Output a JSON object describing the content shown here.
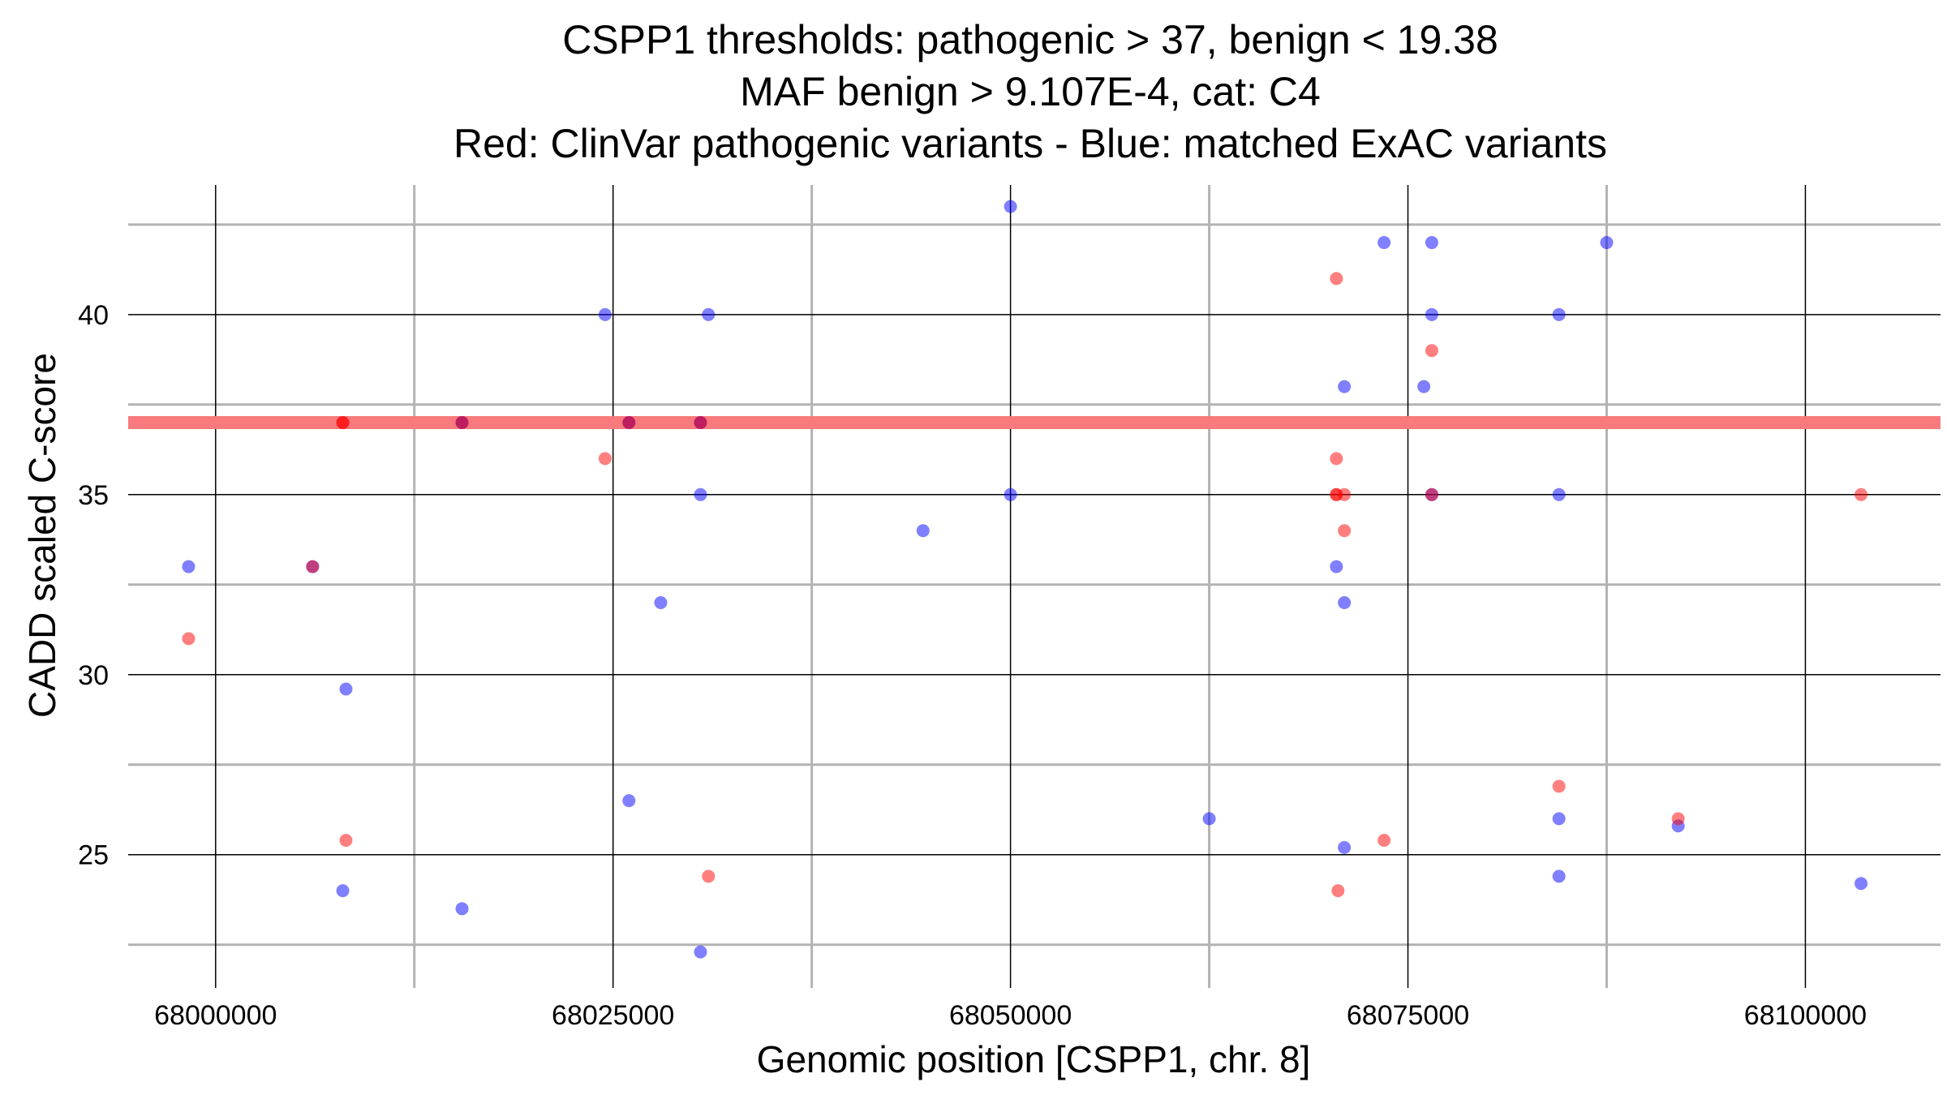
{
  "chart_data": {
    "type": "scatter",
    "title": [
      "CSPP1 thresholds: pathogenic > 37, benign < 19.38",
      "MAF benign > 9.107E-4, cat: C4",
      "Red: ClinVar pathogenic variants - Blue: matched ExAC variants"
    ],
    "xlabel": "Genomic position [CSPP1, chr. 8]",
    "ylabel": "CADD scaled C-score",
    "xlim": [
      67994500,
      68108500
    ],
    "ylim": [
      21.3,
      43.6
    ],
    "x_major_ticks": [
      68000000,
      68025000,
      68050000,
      68075000,
      68100000
    ],
    "x_tick_labels": [
      "68000000",
      "68025000",
      "68050000",
      "68075000",
      "68100000"
    ],
    "x_minor_ticks": [
      68012500,
      68037500,
      68062500,
      68087500
    ],
    "y_major_ticks": [
      25,
      30,
      35,
      40
    ],
    "y_tick_labels": [
      "25",
      "30",
      "35",
      "40"
    ],
    "y_minor_ticks": [
      22.5,
      27.5,
      32.5,
      37.5,
      42.5
    ],
    "threshold_line": {
      "y": 37,
      "color": "#f87a7d",
      "label": "pathogenic threshold"
    },
    "series": [
      {
        "name": "ClinVar pathogenic variants",
        "color": "#ff0000",
        "points": [
          [
            67998300,
            31
          ],
          [
            68006100,
            33
          ],
          [
            68008000,
            37
          ],
          [
            68008000,
            37
          ],
          [
            68008200,
            25.4
          ],
          [
            68015500,
            37
          ],
          [
            68024500,
            36
          ],
          [
            68026000,
            37
          ],
          [
            68030500,
            37
          ],
          [
            68031000,
            24.4
          ],
          [
            68070500,
            41
          ],
          [
            68070500,
            36
          ],
          [
            68070500,
            35
          ],
          [
            68070500,
            35
          ],
          [
            68070600,
            24
          ],
          [
            68071000,
            35
          ],
          [
            68071000,
            34
          ],
          [
            68073500,
            25.4
          ],
          [
            68076500,
            35
          ],
          [
            68076500,
            39
          ],
          [
            68084500,
            26.9
          ],
          [
            68092000,
            26
          ],
          [
            68103500,
            35
          ]
        ]
      },
      {
        "name": "matched ExAC variants",
        "color": "#0000ff",
        "points": [
          [
            67998300,
            33
          ],
          [
            68006100,
            33
          ],
          [
            68008000,
            24
          ],
          [
            68008200,
            29.6
          ],
          [
            68015500,
            37
          ],
          [
            68015500,
            23.5
          ],
          [
            68024500,
            40
          ],
          [
            68026000,
            37
          ],
          [
            68026000,
            26.5
          ],
          [
            68028000,
            32
          ],
          [
            68030500,
            37
          ],
          [
            68030500,
            35
          ],
          [
            68030500,
            22.3
          ],
          [
            68031000,
            40
          ],
          [
            68044500,
            34
          ],
          [
            68050000,
            43
          ],
          [
            68050000,
            35
          ],
          [
            68062500,
            26
          ],
          [
            68070500,
            33
          ],
          [
            68071000,
            38
          ],
          [
            68071000,
            32
          ],
          [
            68071000,
            25.2
          ],
          [
            68073500,
            42
          ],
          [
            68076000,
            38
          ],
          [
            68076500,
            42
          ],
          [
            68076500,
            40
          ],
          [
            68076500,
            35
          ],
          [
            68084500,
            40
          ],
          [
            68084500,
            35
          ],
          [
            68084500,
            26
          ],
          [
            68084500,
            24.4
          ],
          [
            68087500,
            42
          ],
          [
            68092000,
            25.8
          ],
          [
            68103500,
            24.2
          ]
        ]
      }
    ]
  }
}
